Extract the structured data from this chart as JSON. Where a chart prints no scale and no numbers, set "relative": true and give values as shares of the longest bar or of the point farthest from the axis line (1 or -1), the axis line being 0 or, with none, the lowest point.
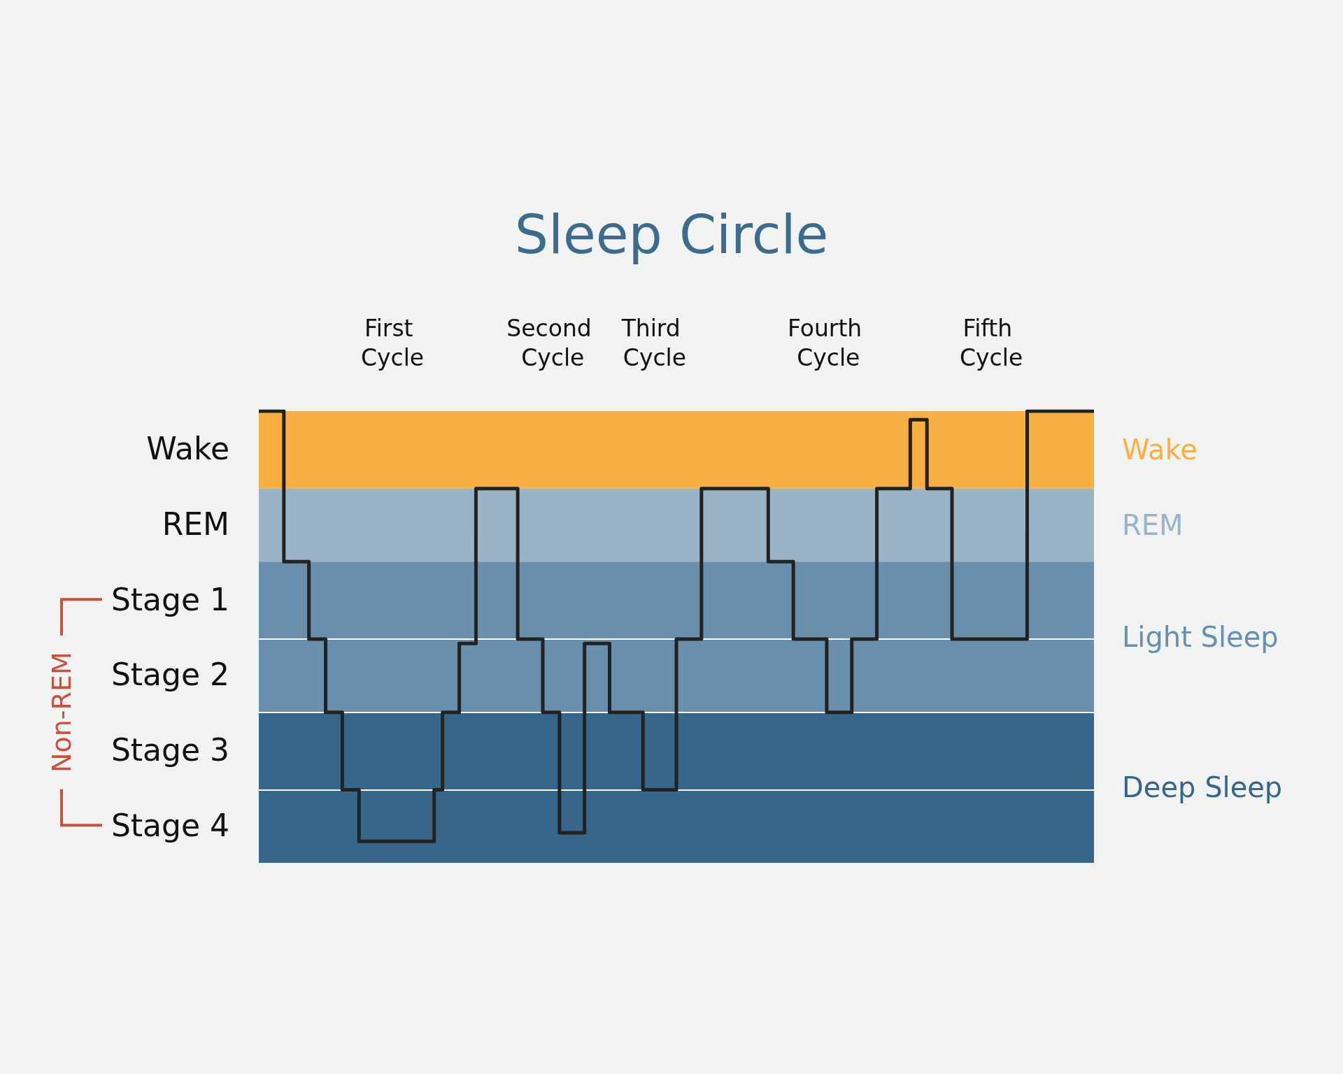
{
  "chart_data": {
    "type": "step",
    "title": "Sleep Circle",
    "relative": true,
    "categories": [
      null,
      null,
      null,
      null,
      null,
      null,
      null,
      null,
      null,
      null,
      null,
      null,
      null,
      null,
      null,
      null,
      null,
      null,
      null,
      null,
      null,
      null,
      null,
      null,
      null,
      null,
      null,
      null,
      null,
      null,
      null,
      null,
      null,
      null,
      null,
      null,
      null,
      null,
      null,
      null,
      null,
      null,
      null,
      null,
      null,
      null,
      null,
      null,
      null,
      null,
      null,
      null,
      null,
      null,
      null,
      null,
      null,
      null,
      null,
      null,
      null,
      null,
      null,
      null,
      null,
      null,
      null,
      null,
      null,
      null,
      null,
      null,
      null,
      null,
      null,
      null,
      null,
      null,
      null,
      null,
      null,
      null,
      null,
      null,
      null,
      null,
      null,
      null,
      null,
      null,
      null,
      null,
      null,
      null,
      null,
      null,
      null,
      null,
      null,
      null,
      null
    ],
    "series": [
      {
        "color": "#222222",
        "values": [
          1,
          1,
          1,
          0.65,
          0.65,
          0.65,
          0.47,
          0.47,
          0.3,
          0.3,
          0.12,
          0.12,
          0,
          0,
          0,
          0,
          0,
          0,
          0,
          0,
          0,
          0.12,
          0.3,
          0.3,
          0.46,
          0.46,
          0.82,
          0.82,
          0.82,
          0.82,
          0.82,
          0.47,
          0.47,
          0.47,
          0.3,
          0.3,
          0.02,
          0.02,
          0.02,
          0.46,
          0.46,
          0.46,
          0.3,
          0.3,
          0.3,
          0.3,
          0.12,
          0.12,
          0.12,
          0.12,
          0.47,
          0.47,
          0.47,
          0.82,
          0.82,
          0.82,
          0.82,
          0.82,
          0.82,
          0.82,
          0.82,
          0.65,
          0.65,
          0.65,
          0.47,
          0.47,
          0.47,
          0.47,
          0.3,
          0.3,
          0.3,
          0.47,
          0.47,
          0.47,
          0.82,
          0.82,
          0.82,
          0.82,
          0.98,
          0.98,
          0.82,
          0.82,
          0.82,
          0.47,
          0.47,
          0.47,
          0.47,
          0.47,
          0.47,
          0.47,
          0.47,
          0.47,
          1,
          1,
          1,
          1,
          1,
          1,
          1,
          1,
          1
        ]
      }
    ],
    "bands": [
      {
        "axis": "y",
        "from": 0.82,
        "to": 1,
        "label": "Wake",
        "color": "#f8b042"
      },
      {
        "axis": "y",
        "from": 0.65,
        "to": 0.82,
        "label": "REM",
        "color": "#9bb3c6"
      },
      {
        "axis": "y",
        "from": 0.3,
        "to": 0.65,
        "label": "Light Sleep",
        "color": "#6a8fac"
      },
      {
        "axis": "y",
        "from": -0.05,
        "to": 0.3,
        "label": "Deep Sleep",
        "color": "#36668a"
      }
    ],
    "ref_lines": [
      {
        "axis": "y",
        "value": 0.12,
        "color": "#ffffff"
      },
      {
        "axis": "y",
        "value": 0.3,
        "color": "#ffffff"
      },
      {
        "axis": "y",
        "value": 0.47,
        "color": "#ffffff"
      }
    ],
    "annotations": [
      "First Cycle",
      "Second Cycle",
      "Third Cycle",
      "Fourth Cycle",
      "Fifth Cycle",
      "Wake",
      "REM",
      "Stage 1",
      "Stage 2",
      "Stage 3",
      "Stage 4",
      "Non-REM"
    ],
    "marker": "none",
    "line_style": "solid"
  }
}
